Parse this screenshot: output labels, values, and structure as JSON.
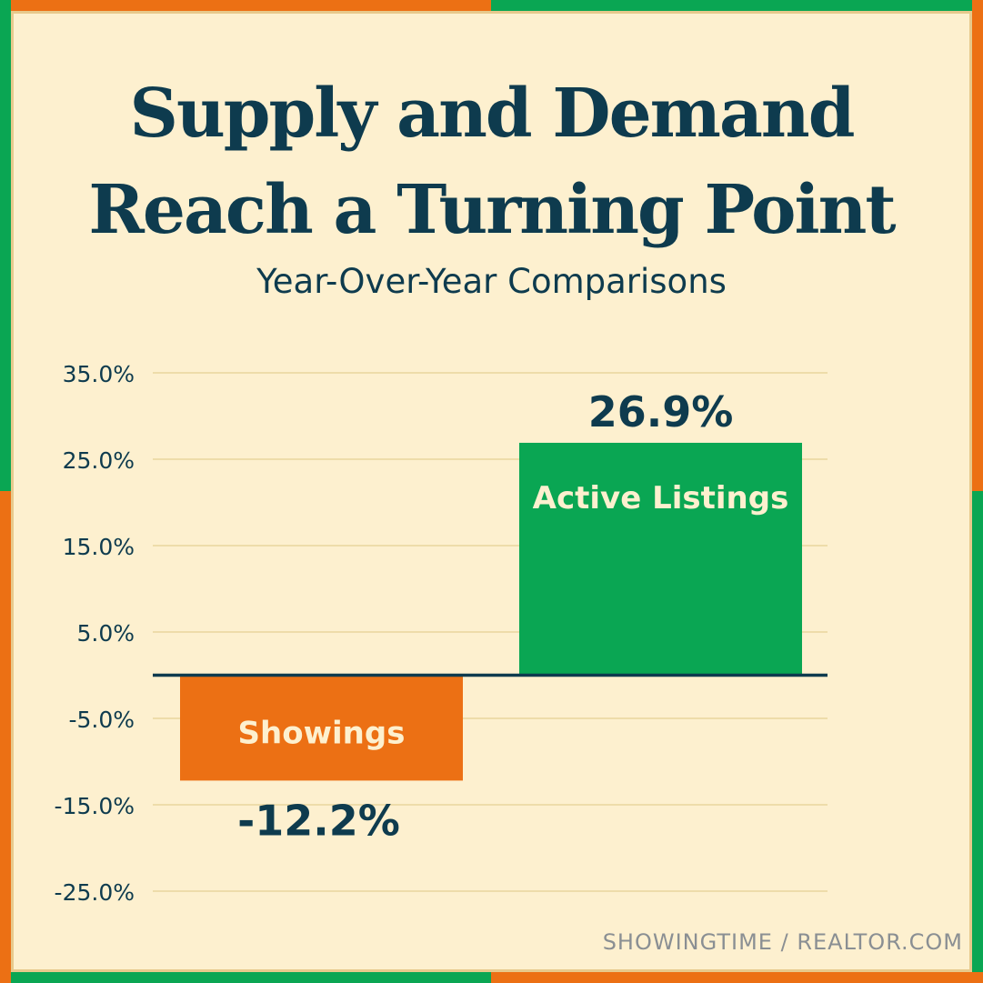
{
  "header": {
    "title_line1": "Supply and Demand",
    "title_line2": "Reach a Turning Point",
    "subtitle": "Year-Over-Year Comparisons"
  },
  "source": "SHOWINGTIME / REALTOR.COM",
  "colors": {
    "orange": "#ec7014",
    "green": "#0aa653",
    "navy": "#0e3b4e",
    "background": "#fdf0cf",
    "grid": "#e6cf94"
  },
  "chart_data": {
    "type": "bar",
    "categories": [
      "Showings",
      "Active Listings"
    ],
    "values": [
      -12.2,
      26.9
    ],
    "value_labels": [
      "-12.2%",
      "26.9%"
    ],
    "bar_colors": [
      "#ec7014",
      "#0aa653"
    ],
    "ylim": [
      -25,
      35
    ],
    "yticks": [
      35,
      25,
      15,
      5,
      -5,
      -15,
      -25
    ],
    "ytick_labels": [
      "35.0%",
      "25.0%",
      "15.0%",
      "5.0%",
      "-5.0%",
      "-15.0%",
      "-25.0%"
    ],
    "grid": true,
    "legend": "none"
  }
}
